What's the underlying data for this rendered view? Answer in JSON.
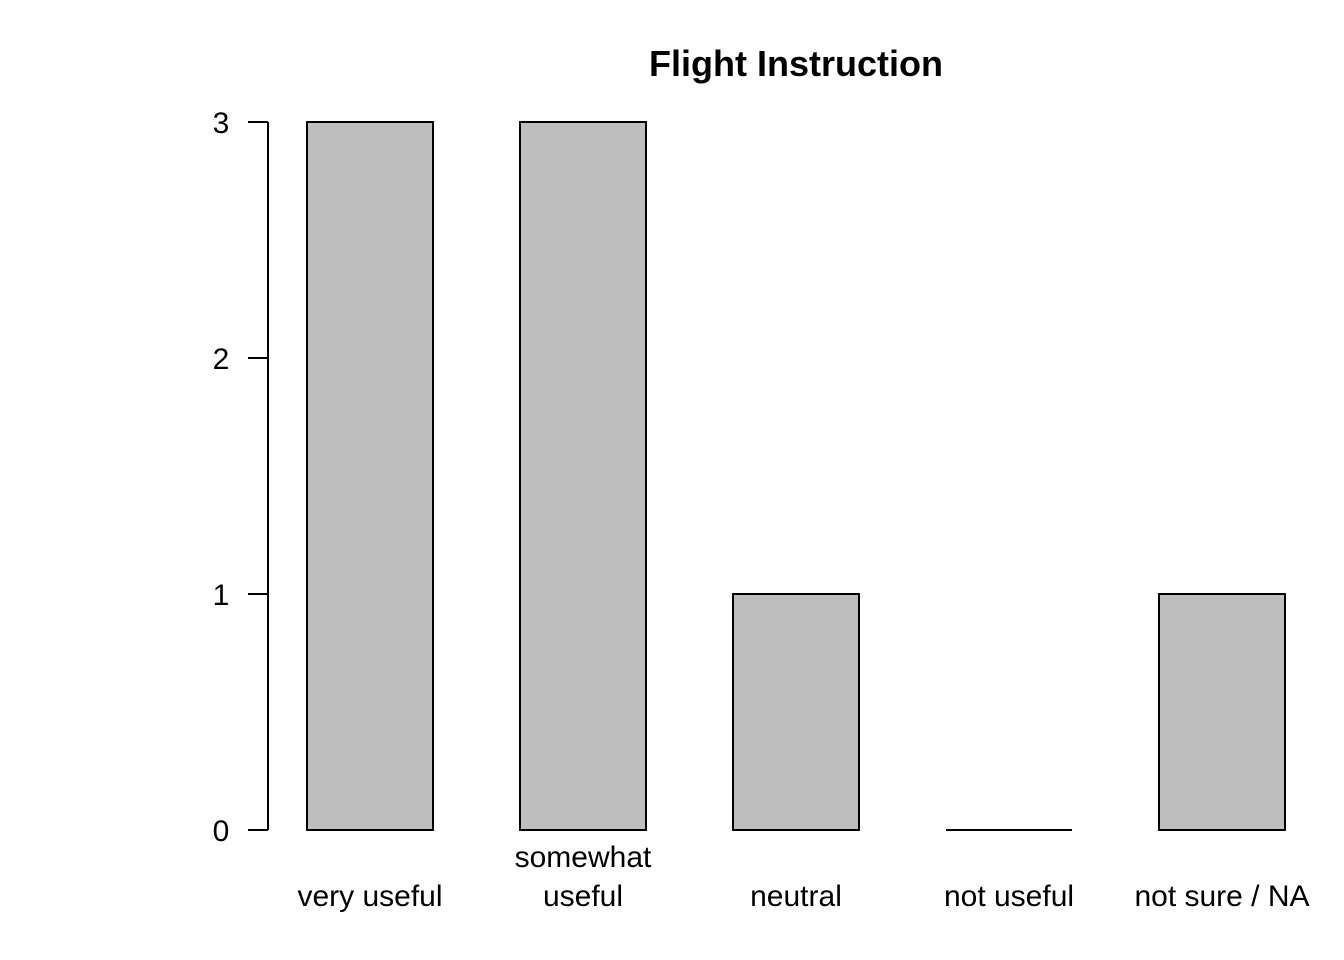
{
  "chart_data": {
    "type": "bar",
    "title": "Flight Instruction",
    "xlabel": "",
    "ylabel": "",
    "categories": [
      [
        "very useful"
      ],
      [
        "somewhat",
        "useful"
      ],
      [
        "neutral"
      ],
      [
        "not useful"
      ],
      [
        "not sure / NA"
      ]
    ],
    "values": [
      3,
      3,
      1,
      0,
      1
    ],
    "yticks": [
      0,
      1,
      2,
      3
    ],
    "ylim": [
      0,
      3
    ],
    "bar_color": "#bebebe",
    "grid": false,
    "legend": "none"
  }
}
